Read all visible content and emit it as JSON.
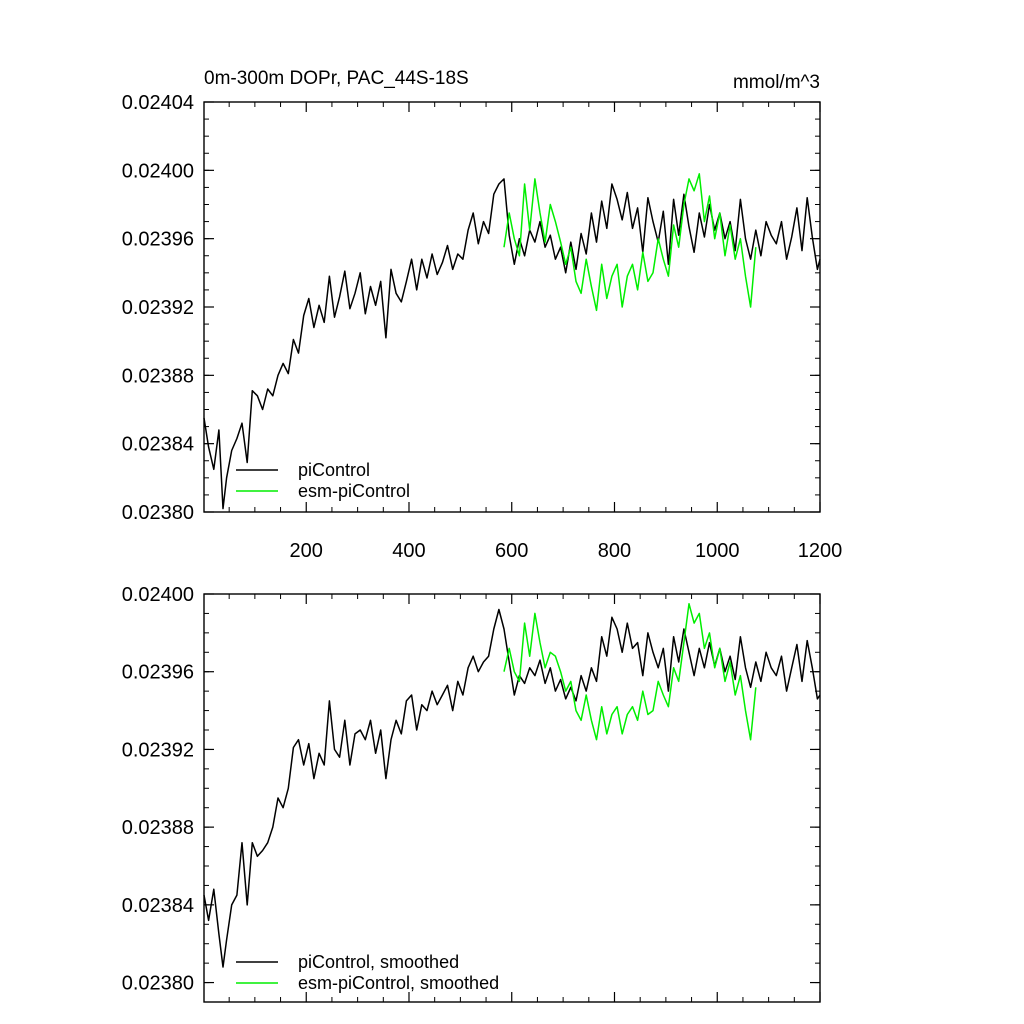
{
  "colors": {
    "piControl": "#000000",
    "esm_piControl": "#00ee00",
    "frame": "#000000"
  },
  "chart_data": [
    {
      "type": "line",
      "title": "0m-300m DOPr, PAC_44S-18S",
      "units_label": "mmol/m^3",
      "xlabel": "",
      "ylabel": "",
      "xlim": [
        1,
        1200
      ],
      "ylim": [
        0.0238,
        0.02404
      ],
      "xticks": [
        200,
        400,
        600,
        800,
        1000,
        1200
      ],
      "xtick_labels": [
        "200",
        "400",
        "600",
        "800",
        "1000",
        "1200"
      ],
      "yticks": [
        0.0238,
        0.02384,
        0.02388,
        0.02392,
        0.02396,
        0.024,
        0.02404
      ],
      "ytick_labels": [
        "0.02380",
        "0.02384",
        "0.02388",
        "0.02392",
        "0.02396",
        "0.02400",
        "0.02404"
      ],
      "legend_position": "bottom-left",
      "series": [
        {
          "name": "piControl",
          "color_key": "piControl",
          "x": [
            1,
            10,
            20,
            30,
            38,
            45,
            55,
            65,
            75,
            85,
            95,
            105,
            115,
            125,
            135,
            145,
            155,
            165,
            175,
            185,
            195,
            205,
            215,
            225,
            235,
            245,
            255,
            265,
            275,
            285,
            295,
            305,
            315,
            325,
            335,
            345,
            355,
            365,
            375,
            385,
            395,
            405,
            415,
            425,
            435,
            445,
            455,
            465,
            475,
            485,
            495,
            505,
            515,
            525,
            535,
            545,
            555,
            565,
            575,
            585,
            595,
            605,
            615,
            625,
            635,
            645,
            655,
            665,
            675,
            685,
            695,
            705,
            715,
            725,
            735,
            745,
            755,
            765,
            775,
            785,
            795,
            805,
            815,
            825,
            835,
            845,
            855,
            865,
            875,
            885,
            895,
            905,
            915,
            925,
            935,
            945,
            955,
            965,
            975,
            985,
            995,
            1005,
            1015,
            1025,
            1035,
            1045,
            1055,
            1065,
            1075,
            1085,
            1095,
            1105,
            1115,
            1125,
            1135,
            1145,
            1155,
            1165,
            1175,
            1185,
            1195,
            1200
          ],
          "y": [
            0.023855,
            0.023838,
            0.023825,
            0.023848,
            0.023802,
            0.02382,
            0.023836,
            0.023843,
            0.023852,
            0.023829,
            0.023871,
            0.023868,
            0.02386,
            0.023872,
            0.023868,
            0.02388,
            0.023887,
            0.023881,
            0.023901,
            0.023893,
            0.023915,
            0.023925,
            0.023908,
            0.023921,
            0.023911,
            0.023938,
            0.023914,
            0.023926,
            0.023941,
            0.023919,
            0.023928,
            0.02394,
            0.023916,
            0.023932,
            0.023921,
            0.023935,
            0.023902,
            0.023942,
            0.023928,
            0.023923,
            0.023935,
            0.023948,
            0.02393,
            0.023948,
            0.023937,
            0.023951,
            0.023939,
            0.023946,
            0.023956,
            0.023942,
            0.023951,
            0.023948,
            0.023965,
            0.023975,
            0.023957,
            0.02397,
            0.023963,
            0.023986,
            0.023992,
            0.023995,
            0.023962,
            0.023945,
            0.02396,
            0.02395,
            0.023965,
            0.023958,
            0.02397,
            0.023955,
            0.023962,
            0.023948,
            0.023955,
            0.02394,
            0.023958,
            0.023942,
            0.023963,
            0.023951,
            0.023975,
            0.023958,
            0.023982,
            0.023966,
            0.023992,
            0.023983,
            0.023971,
            0.023987,
            0.023966,
            0.023978,
            0.023952,
            0.023984,
            0.02397,
            0.023958,
            0.023976,
            0.023945,
            0.023983,
            0.023962,
            0.023986,
            0.023967,
            0.023952,
            0.023975,
            0.023961,
            0.02398,
            0.023965,
            0.023975,
            0.02396,
            0.02397,
            0.023953,
            0.023983,
            0.02396,
            0.023948,
            0.023965,
            0.02395,
            0.02397,
            0.023962,
            0.023957,
            0.02397,
            0.023948,
            0.023961,
            0.023978,
            0.023953,
            0.023984,
            0.023961,
            0.023942,
            0.023948
          ]
        },
        {
          "name": "esm-piControl",
          "color_key": "esm_piControl",
          "x": [
            585,
            595,
            605,
            615,
            625,
            635,
            645,
            655,
            665,
            675,
            685,
            695,
            705,
            715,
            725,
            735,
            745,
            755,
            765,
            775,
            785,
            795,
            805,
            815,
            825,
            835,
            845,
            855,
            865,
            875,
            885,
            895,
            905,
            915,
            925,
            935,
            945,
            955,
            965,
            975,
            985,
            995,
            1005,
            1015,
            1025,
            1035,
            1045,
            1055,
            1065,
            1075
          ],
          "y": [
            0.023955,
            0.023975,
            0.02396,
            0.02395,
            0.023992,
            0.023965,
            0.023995,
            0.023975,
            0.023958,
            0.02398,
            0.02397,
            0.023958,
            0.023945,
            0.023955,
            0.023935,
            0.023928,
            0.023948,
            0.023932,
            0.023918,
            0.023945,
            0.023925,
            0.023938,
            0.023945,
            0.02392,
            0.023938,
            0.023945,
            0.02393,
            0.023952,
            0.023935,
            0.02394,
            0.02396,
            0.023948,
            0.023938,
            0.023968,
            0.023955,
            0.02398,
            0.023995,
            0.023988,
            0.023998,
            0.02397,
            0.023985,
            0.02396,
            0.023975,
            0.02395,
            0.023968,
            0.023948,
            0.02396,
            0.023938,
            0.02392,
            0.023955
          ]
        }
      ]
    },
    {
      "type": "line",
      "title": "",
      "xlabel": "",
      "ylabel": "",
      "xlim": [
        1,
        1200
      ],
      "ylim": [
        0.02379,
        0.024
      ],
      "xticks": [
        200,
        400,
        600,
        800,
        1000,
        1200
      ],
      "xtick_labels": [],
      "yticks": [
        0.0238,
        0.02384,
        0.02388,
        0.02392,
        0.02396,
        0.024
      ],
      "ytick_labels": [
        "0.02380",
        "0.02384",
        "0.02388",
        "0.02392",
        "0.02396",
        "0.02400"
      ],
      "legend_position": "bottom-left",
      "series": [
        {
          "name": "piControl, smoothed",
          "color_key": "piControl",
          "x": [
            1,
            10,
            20,
            30,
            38,
            45,
            55,
            65,
            75,
            85,
            95,
            105,
            115,
            125,
            135,
            145,
            155,
            165,
            175,
            185,
            195,
            205,
            215,
            225,
            235,
            245,
            255,
            265,
            275,
            285,
            295,
            305,
            315,
            325,
            335,
            345,
            355,
            365,
            375,
            385,
            395,
            405,
            415,
            425,
            435,
            445,
            455,
            465,
            475,
            485,
            495,
            505,
            515,
            525,
            535,
            545,
            555,
            565,
            575,
            585,
            595,
            605,
            615,
            625,
            635,
            645,
            655,
            665,
            675,
            685,
            695,
            705,
            715,
            725,
            735,
            745,
            755,
            765,
            775,
            785,
            795,
            805,
            815,
            825,
            835,
            845,
            855,
            865,
            875,
            885,
            895,
            905,
            915,
            925,
            935,
            945,
            955,
            965,
            975,
            985,
            995,
            1005,
            1015,
            1025,
            1035,
            1045,
            1055,
            1065,
            1075,
            1085,
            1095,
            1105,
            1115,
            1125,
            1135,
            1145,
            1155,
            1165,
            1175,
            1185,
            1195,
            1200
          ],
          "y": [
            0.023845,
            0.023832,
            0.023848,
            0.023825,
            0.023808,
            0.023822,
            0.02384,
            0.023845,
            0.023872,
            0.02384,
            0.023872,
            0.023865,
            0.023868,
            0.023872,
            0.02388,
            0.023895,
            0.02389,
            0.0239,
            0.023921,
            0.023925,
            0.023912,
            0.023923,
            0.023905,
            0.023918,
            0.023912,
            0.023945,
            0.02392,
            0.023916,
            0.023935,
            0.023912,
            0.023928,
            0.02393,
            0.023925,
            0.023935,
            0.023918,
            0.02393,
            0.023905,
            0.023925,
            0.023935,
            0.023928,
            0.023945,
            0.023948,
            0.02393,
            0.023943,
            0.02394,
            0.02395,
            0.023943,
            0.023948,
            0.023953,
            0.02394,
            0.023955,
            0.023948,
            0.023962,
            0.023968,
            0.02396,
            0.023965,
            0.023968,
            0.023982,
            0.023992,
            0.023982,
            0.023965,
            0.023948,
            0.023958,
            0.023954,
            0.023962,
            0.023958,
            0.023966,
            0.023954,
            0.023962,
            0.02395,
            0.023956,
            0.023946,
            0.023952,
            0.023945,
            0.023958,
            0.02395,
            0.023962,
            0.023955,
            0.023978,
            0.023968,
            0.023988,
            0.023982,
            0.02397,
            0.023985,
            0.023972,
            0.023975,
            0.023958,
            0.02398,
            0.02397,
            0.023962,
            0.023972,
            0.02395,
            0.023978,
            0.023965,
            0.023982,
            0.02397,
            0.023958,
            0.023972,
            0.023962,
            0.023975,
            0.023963,
            0.023972,
            0.02396,
            0.023968,
            0.023956,
            0.023978,
            0.023962,
            0.023952,
            0.023965,
            0.023955,
            0.02397,
            0.023962,
            0.023958,
            0.023968,
            0.02395,
            0.023962,
            0.023974,
            0.023955,
            0.023976,
            0.023962,
            0.023946,
            0.023948
          ]
        },
        {
          "name": "esm-piControl, smoothed",
          "color_key": "esm_piControl",
          "x": [
            585,
            595,
            605,
            615,
            625,
            635,
            645,
            655,
            665,
            675,
            685,
            695,
            705,
            715,
            725,
            735,
            745,
            755,
            765,
            775,
            785,
            795,
            805,
            815,
            825,
            835,
            845,
            855,
            865,
            875,
            885,
            895,
            905,
            915,
            925,
            935,
            945,
            955,
            965,
            975,
            985,
            995,
            1005,
            1015,
            1025,
            1035,
            1045,
            1055,
            1065,
            1075
          ],
          "y": [
            0.02396,
            0.023972,
            0.02396,
            0.023955,
            0.023985,
            0.023968,
            0.02399,
            0.023975,
            0.023962,
            0.02397,
            0.023968,
            0.02396,
            0.02395,
            0.023955,
            0.02394,
            0.023935,
            0.023948,
            0.023935,
            0.023925,
            0.023942,
            0.023928,
            0.023938,
            0.023942,
            0.023928,
            0.023938,
            0.023942,
            0.023935,
            0.02395,
            0.023938,
            0.02394,
            0.023955,
            0.023948,
            0.023942,
            0.023962,
            0.023955,
            0.023975,
            0.023995,
            0.023985,
            0.02399,
            0.023972,
            0.02398,
            0.023962,
            0.023972,
            0.023955,
            0.023965,
            0.023948,
            0.023958,
            0.02394,
            0.023925,
            0.023952
          ]
        }
      ]
    }
  ]
}
